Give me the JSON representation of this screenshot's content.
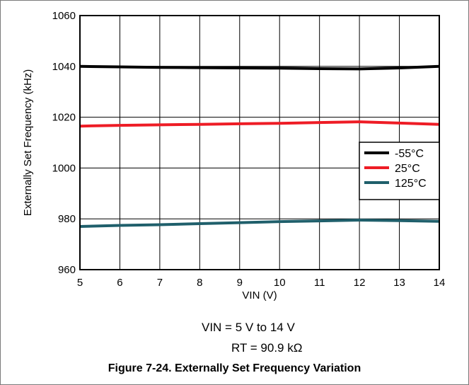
{
  "chart_data": {
    "type": "line",
    "xlabel": "VIN (V)",
    "ylabel": "Externally Set Frequency (kHz)",
    "xlim": [
      5,
      14
    ],
    "ylim": [
      960,
      1060
    ],
    "xticks": [
      5,
      6,
      7,
      8,
      9,
      10,
      11,
      12,
      13,
      14
    ],
    "yticks": [
      960,
      980,
      1000,
      1020,
      1040,
      1060
    ],
    "grid": true,
    "legend_position": "right",
    "series": [
      {
        "name": "-55°C",
        "color": "#000000",
        "x": [
          5,
          6,
          7,
          8,
          9,
          10,
          11,
          12,
          13,
          14
        ],
        "y": [
          1040.0,
          1039.8,
          1039.6,
          1039.5,
          1039.4,
          1039.3,
          1039.1,
          1039.0,
          1039.4,
          1040.0
        ]
      },
      {
        "name": "25°C",
        "color": "#ee1c25",
        "x": [
          5,
          6,
          7,
          8,
          9,
          10,
          11,
          12,
          13,
          14
        ],
        "y": [
          1016.5,
          1016.8,
          1017.0,
          1017.2,
          1017.4,
          1017.6,
          1017.9,
          1018.2,
          1017.7,
          1017.2
        ]
      },
      {
        "name": "125°C",
        "color": "#1f5f6b",
        "x": [
          5,
          6,
          7,
          8,
          9,
          10,
          11,
          12,
          13,
          14
        ],
        "y": [
          977.0,
          977.4,
          977.7,
          978.1,
          978.5,
          978.9,
          979.2,
          979.5,
          979.3,
          979.0
        ]
      }
    ]
  },
  "notes": [
    "VIN = 5 V to 14 V",
    "RT = 90.9 kΩ"
  ],
  "caption": "Figure 7-24. Externally Set Frequency Variation"
}
